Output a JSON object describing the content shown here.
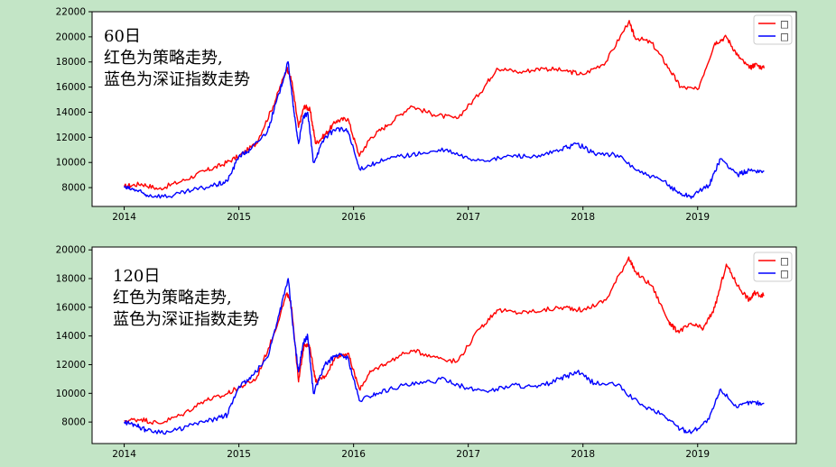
{
  "colors": {
    "background": "#c3e5c6",
    "strategy": "#ff0000",
    "index": "#0000ff"
  },
  "chart_data": [
    {
      "type": "line",
      "ylim": [
        6500,
        22000
      ],
      "xlim": [
        2013.72,
        2019.86
      ],
      "x_ticks": [
        2014,
        2015,
        2016,
        2017,
        2018,
        2019
      ],
      "x_tick_labels": [
        "2014",
        "2015",
        "2016",
        "2017",
        "2018",
        "2019"
      ],
      "y_ticks": [
        8000,
        10000,
        12000,
        14000,
        16000,
        18000,
        20000,
        22000
      ],
      "y_tick_labels": [
        "8000",
        "10000",
        "12000",
        "14000",
        "16000",
        "18000",
        "20000",
        "22000"
      ],
      "annotation": [
        "60日",
        "红色为策略走势,",
        "蓝色为深证指数走势"
      ],
      "legend": {
        "placement": "top-right",
        "labels": [
          "□",
          "□"
        ]
      },
      "grid": false,
      "series": [
        {
          "color": "#ff0000",
          "x": [
            2014.0,
            2014.15,
            2014.3,
            2014.5,
            2014.7,
            2014.85,
            2015.0,
            2015.15,
            2015.3,
            2015.42,
            2015.46,
            2015.52,
            2015.57,
            2015.62,
            2015.67,
            2015.75,
            2015.85,
            2015.95,
            2016.05,
            2016.15,
            2016.3,
            2016.5,
            2016.7,
            2016.9,
            2017.1,
            2017.25,
            2017.45,
            2017.65,
            2017.85,
            2018.0,
            2018.2,
            2018.4,
            2018.45,
            2018.6,
            2018.75,
            2018.85,
            2019.0,
            2019.15,
            2019.25,
            2019.35,
            2019.45,
            2019.5,
            2019.58
          ],
          "y": [
            8100,
            8300,
            7900,
            8500,
            9300,
            9800,
            10500,
            11500,
            14500,
            17500,
            16500,
            12800,
            14500,
            14200,
            11500,
            12200,
            13300,
            13500,
            10500,
            12000,
            13000,
            14500,
            13800,
            13500,
            15500,
            17500,
            17200,
            17500,
            17300,
            17000,
            18000,
            21200,
            20000,
            19500,
            17500,
            16000,
            15800,
            19500,
            20000,
            18500,
            17500,
            17800,
            17500
          ]
        },
        {
          "color": "#0000ff",
          "x": [
            2014.0,
            2014.1,
            2014.2,
            2014.4,
            2014.6,
            2014.8,
            2014.9,
            2015.0,
            2015.1,
            2015.25,
            2015.35,
            2015.43,
            2015.48,
            2015.52,
            2015.56,
            2015.6,
            2015.65,
            2015.75,
            2015.85,
            2015.95,
            2016.05,
            2016.2,
            2016.4,
            2016.6,
            2016.8,
            2017.0,
            2017.2,
            2017.4,
            2017.6,
            2017.8,
            2017.95,
            2018.1,
            2018.3,
            2018.5,
            2018.7,
            2018.85,
            2018.95,
            2019.1,
            2019.2,
            2019.35,
            2019.45,
            2019.58
          ],
          "y": [
            8000,
            7800,
            7400,
            7300,
            7800,
            8200,
            8500,
            10500,
            11000,
            12500,
            15500,
            18000,
            14000,
            11500,
            13500,
            14000,
            10000,
            12000,
            12700,
            12500,
            9500,
            10000,
            10500,
            10700,
            11000,
            10300,
            10200,
            10600,
            10400,
            11000,
            11500,
            10700,
            10600,
            9200,
            8500,
            7500,
            7300,
            8200,
            10300,
            9000,
            9400,
            9300
          ]
        }
      ]
    },
    {
      "type": "line",
      "ylim": [
        6500,
        20200
      ],
      "xlim": [
        2013.72,
        2019.86
      ],
      "x_ticks": [
        2014,
        2015,
        2016,
        2017,
        2018,
        2019
      ],
      "x_tick_labels": [
        "2014",
        "2015",
        "2016",
        "2017",
        "2018",
        "2019"
      ],
      "y_ticks": [
        8000,
        10000,
        12000,
        14000,
        16000,
        18000,
        20000
      ],
      "y_tick_labels": [
        "8000",
        "10000",
        "12000",
        "14000",
        "16000",
        "18000",
        "20000"
      ],
      "annotation": [
        "120日",
        "红色为策略走势,",
        "蓝色为深证指数走势"
      ],
      "legend": {
        "placement": "top-right",
        "labels": [
          "□",
          "□"
        ]
      },
      "grid": false,
      "series": [
        {
          "color": "#ff0000",
          "x": [
            2014.0,
            2014.15,
            2014.3,
            2014.5,
            2014.7,
            2014.85,
            2015.0,
            2015.15,
            2015.3,
            2015.42,
            2015.46,
            2015.52,
            2015.57,
            2015.62,
            2015.67,
            2015.75,
            2015.85,
            2015.95,
            2016.05,
            2016.15,
            2016.3,
            2016.5,
            2016.7,
            2016.9,
            2017.1,
            2017.25,
            2017.45,
            2017.65,
            2017.85,
            2018.0,
            2018.2,
            2018.4,
            2018.45,
            2018.6,
            2018.75,
            2018.82,
            2018.95,
            2019.05,
            2019.15,
            2019.25,
            2019.35,
            2019.45,
            2019.5,
            2019.58
          ],
          "y": [
            8100,
            8200,
            7900,
            8500,
            9500,
            9800,
            10400,
            11000,
            14000,
            17000,
            16000,
            10800,
            13500,
            13200,
            10800,
            11200,
            12600,
            12800,
            10300,
            11500,
            12200,
            13000,
            12600,
            12200,
            14500,
            15800,
            15600,
            15800,
            16000,
            15800,
            16500,
            19500,
            18500,
            17500,
            15000,
            14300,
            14800,
            14500,
            16000,
            19000,
            17500,
            16500,
            17000,
            16800
          ]
        },
        {
          "color": "#0000ff",
          "x": [
            2014.0,
            2014.1,
            2014.2,
            2014.4,
            2014.6,
            2014.8,
            2014.9,
            2015.0,
            2015.1,
            2015.25,
            2015.35,
            2015.43,
            2015.48,
            2015.52,
            2015.56,
            2015.6,
            2015.65,
            2015.75,
            2015.85,
            2015.95,
            2016.05,
            2016.2,
            2016.4,
            2016.6,
            2016.8,
            2017.0,
            2017.2,
            2017.4,
            2017.6,
            2017.8,
            2017.95,
            2018.1,
            2018.3,
            2018.5,
            2018.7,
            2018.85,
            2018.95,
            2019.1,
            2019.2,
            2019.35,
            2019.45,
            2019.58
          ],
          "y": [
            8000,
            7800,
            7400,
            7300,
            7800,
            8200,
            8500,
            10500,
            11000,
            12500,
            15500,
            18000,
            14000,
            11500,
            13500,
            14000,
            10000,
            12000,
            12700,
            12500,
            9500,
            10000,
            10500,
            10700,
            11000,
            10300,
            10200,
            10600,
            10400,
            11000,
            11500,
            10700,
            10600,
            9200,
            8500,
            7500,
            7300,
            8200,
            10300,
            9000,
            9400,
            9300
          ]
        }
      ]
    }
  ]
}
